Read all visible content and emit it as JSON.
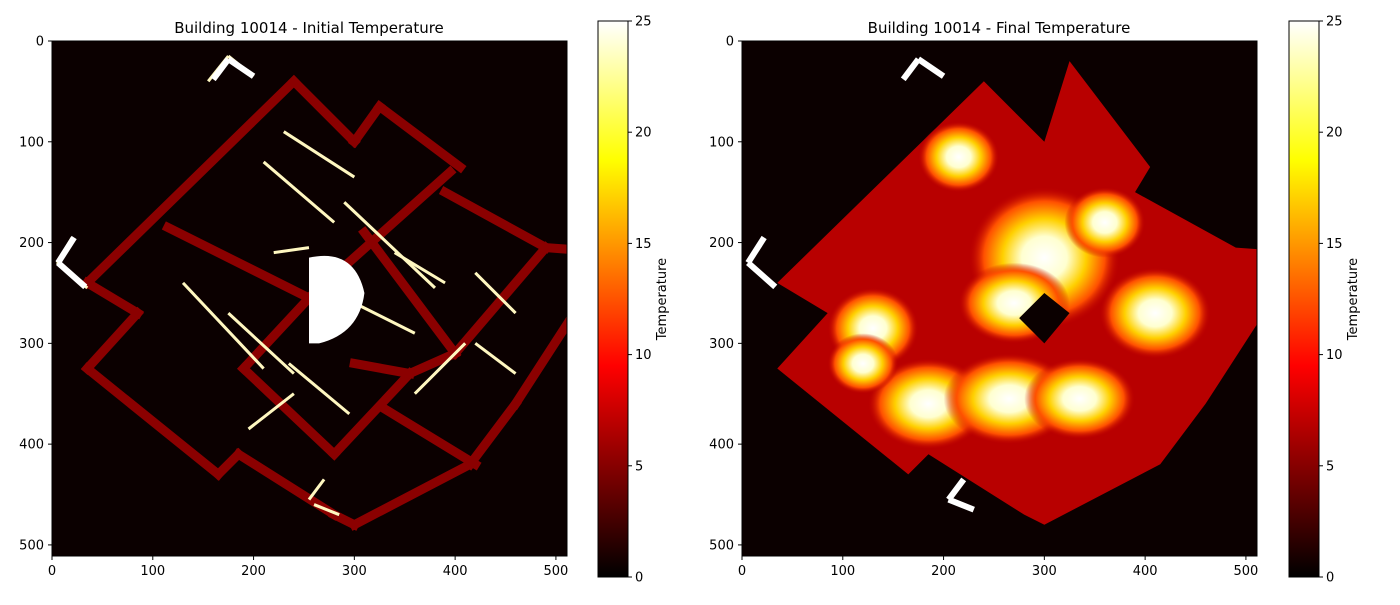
{
  "figure": {
    "panels": [
      {
        "title": "Building 10014 - Initial Temperature",
        "colorbar_label": "Temperature"
      },
      {
        "title": "Building 10014 - Final Temperature",
        "colorbar_label": "Temperature"
      }
    ]
  },
  "chart_data": [
    {
      "type": "heatmap",
      "title": "Building 10014 - Initial Temperature",
      "xlabel": "",
      "ylabel": "",
      "xlim": [
        0,
        511
      ],
      "ylim": [
        511,
        0
      ],
      "x_ticks": [
        0,
        100,
        200,
        300,
        400,
        500
      ],
      "y_ticks": [
        0,
        100,
        200,
        300,
        400,
        500
      ],
      "colormap": "hot",
      "colorbar": {
        "label": "Temperature",
        "range": [
          0,
          25
        ],
        "ticks": [
          0,
          5,
          10,
          15,
          20,
          25
        ]
      },
      "description_values": {
        "background": 0,
        "walls": 7,
        "heat_sources": 25
      }
    },
    {
      "type": "heatmap",
      "title": "Building 10014 - Final Temperature",
      "xlabel": "",
      "ylabel": "",
      "xlim": [
        0,
        511
      ],
      "ylim": [
        511,
        0
      ],
      "x_ticks": [
        0,
        100,
        200,
        300,
        400,
        500
      ],
      "y_ticks": [
        0,
        100,
        200,
        300,
        400,
        500
      ],
      "colormap": "hot",
      "colorbar": {
        "label": "Temperature",
        "range": [
          0,
          25
        ],
        "ticks": [
          0,
          5,
          10,
          15,
          20,
          25
        ]
      },
      "description_values": {
        "background": 0,
        "interior_min": 3,
        "interior_max": 25
      }
    }
  ],
  "colors": {
    "wall": "#8b0000",
    "background": "#0b0000",
    "hot": "#ffffff"
  }
}
